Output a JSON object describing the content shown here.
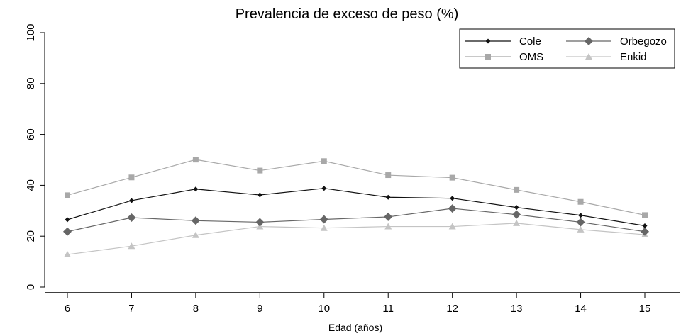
{
  "chart_data": {
    "type": "line",
    "title": "Prevalencia de exceso de peso (%)",
    "xlabel": "Edad (años)",
    "ylabel": "",
    "x": [
      6,
      7,
      8,
      9,
      10,
      11,
      12,
      13,
      14,
      15
    ],
    "x_tick_labels": [
      "6",
      "7",
      "8",
      "9",
      "10",
      "11",
      "12",
      "13",
      "14",
      "15"
    ],
    "y_ticks": [
      0,
      20,
      40,
      60,
      80,
      100
    ],
    "y_tick_labels": [
      "0",
      "20",
      "40",
      "60",
      "80",
      "100"
    ],
    "ylim": [
      0,
      100
    ],
    "grid": false,
    "legend_position": "top-right",
    "series": [
      {
        "name": "Cole",
        "marker": "diamond-small",
        "color": "#111111",
        "values": [
          26.5,
          34,
          38.5,
          36.2,
          38.8,
          35.3,
          34.9,
          31.3,
          28.2,
          24.1
        ]
      },
      {
        "name": "Orbegozo",
        "marker": "diamond",
        "color": "#666666",
        "values": [
          21.8,
          27.3,
          26.1,
          25.5,
          26.6,
          27.6,
          30.9,
          28.5,
          25.5,
          21.8
        ]
      },
      {
        "name": "OMS",
        "marker": "square",
        "color": "#a8a8a8",
        "values": [
          36.1,
          43.1,
          50.1,
          45.8,
          49.5,
          44,
          43,
          38.2,
          33.5,
          28.3
        ]
      },
      {
        "name": "Enkid",
        "marker": "triangle",
        "color": "#c4c4c4",
        "values": [
          12.8,
          16.1,
          20.4,
          23.8,
          23.2,
          23.8,
          23.8,
          25.1,
          22.6,
          20.6
        ]
      }
    ]
  }
}
